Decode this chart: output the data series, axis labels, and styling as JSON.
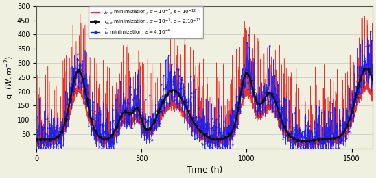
{
  "xlabel": "Time (h)",
  "ylabel": "q  $(W.m^{-2})$",
  "xlim": [
    0,
    1600
  ],
  "ylim": [
    0,
    500
  ],
  "yticks": [
    50,
    100,
    150,
    200,
    250,
    300,
    350,
    400,
    450,
    500
  ],
  "xticks": [
    0,
    500,
    1000,
    1500
  ],
  "legend": [
    "$J_{\\alpha,\\varepsilon}$ minimization, $\\alpha = 10^{-7}$, $\\varepsilon = 10^{-12}$",
    "$J_{\\alpha,\\varepsilon}$ minimization, $\\alpha = 10^{-3}$, $\\varepsilon = 2.10^{-13}$",
    "$\\tilde{J}_{\\varepsilon}$ minimization, $\\varepsilon = 4.10^{-6}$"
  ],
  "colors": [
    "#e8312a",
    "#111111",
    "#1a1aee"
  ],
  "bg_color": "#f0f0e0",
  "grid_color": "#d8d8d8"
}
